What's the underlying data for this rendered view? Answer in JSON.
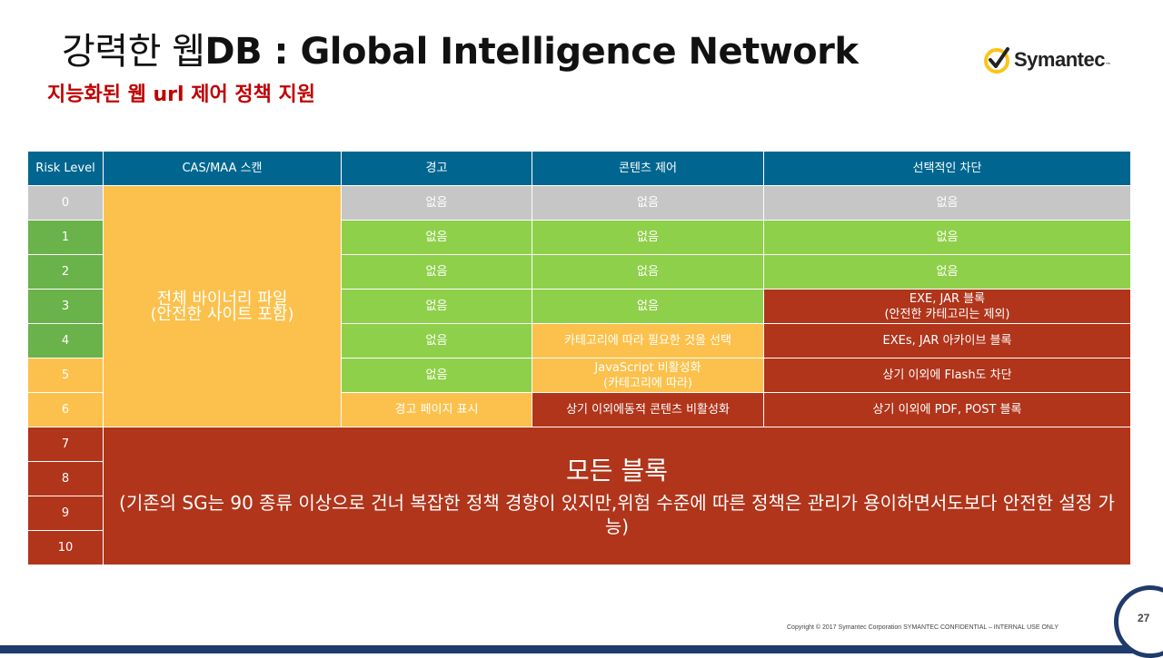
{
  "title": {
    "prefix": "강력한 웹",
    "main": "DB : Global Intelligence Network"
  },
  "subtitle": "지능화된 웹 url 제어 정책 지원",
  "logo": {
    "word": "Symantec",
    "tm": "™",
    "check_color": "#fcc419"
  },
  "colors": {
    "header": "#00668f",
    "gray": "#c6c6c6",
    "green": "#8fd04a",
    "green_dark": "#6ab24a",
    "yellow": "#fcc14c",
    "red": "#b0351b"
  },
  "table": {
    "headers": [
      "Risk Level",
      "CAS/MAA 스캔",
      "경고",
      "콘텐츠 제어",
      "선택적인 차단"
    ],
    "levels": [
      "0",
      "1",
      "2",
      "3",
      "4",
      "5",
      "6",
      "7",
      "8",
      "9",
      "10"
    ],
    "cas_merged": [
      "전체 바이너리 파일",
      "(안전한 사이트 포함)"
    ],
    "rows": [
      {
        "warn": "없음",
        "content": "없음",
        "block": "없음"
      },
      {
        "warn": "없음",
        "content": "없음",
        "block": "없음"
      },
      {
        "warn": "없음",
        "content": "없음",
        "block": "없음"
      },
      {
        "warn": "없음",
        "content": "없음",
        "block": [
          "EXE, JAR 블록",
          "(안전한 카테고리는 제외)"
        ]
      },
      {
        "warn": "없음",
        "content": "카테고리에 따라 필요한 것을 선택",
        "block": "EXEs, JAR 아카이브 블록"
      },
      {
        "warn": "없음",
        "content": [
          "JavaScript 비활성화",
          "(카테고리에 따라)"
        ],
        "block": "상기 이외에 Flash도 차단"
      },
      {
        "warn": "경고 페이지 표시",
        "content": "상기 이외에동적 콘텐츠 비활성화",
        "block": "상기 이외에 PDF, POST 블록"
      }
    ],
    "all_block": {
      "title": "모든 블록",
      "desc": "(기존의 SG는 90 종류 이상으로 건너 복잡한 정책 경향이 있지만,위험 수준에 따른 정책은 관리가 용이하면서도보다 안전한 설정 가능)"
    }
  },
  "footer": {
    "copyright": "Copyright © 2017 Symantec Corporation SYMANTEC  CONFIDENTIAL – INTERNAL  USE ONLY",
    "page": "27"
  }
}
